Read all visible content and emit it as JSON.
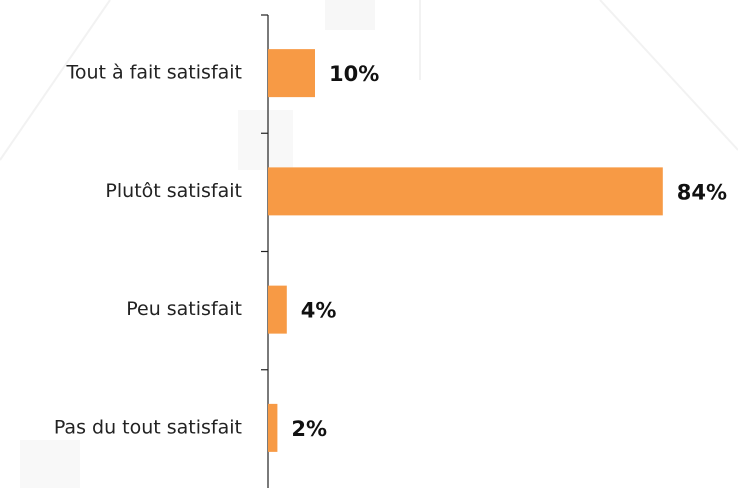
{
  "chart_data": {
    "type": "bar",
    "orientation": "horizontal",
    "categories": [
      "Tout à fait satisfait",
      "Plutôt satisfait",
      "Peu satisfait",
      "Pas du tout satisfait"
    ],
    "values": [
      10,
      84,
      4,
      2
    ],
    "value_labels": [
      "10%",
      "84%",
      "4%",
      "2%"
    ],
    "color": "#f79a45"
  }
}
